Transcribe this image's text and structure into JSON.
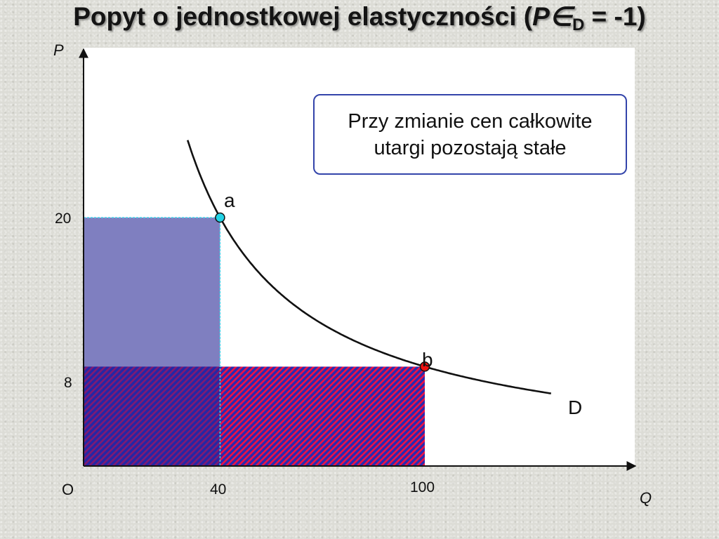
{
  "title": {
    "text": "Popyt o jednostkowej elastyczności (",
    "symbol": "P∈",
    "subscript": "D",
    "tail": " = -1)"
  },
  "axes": {
    "y_label": "P",
    "x_label": "Q",
    "origin_label": "O"
  },
  "ticks": {
    "y": [
      "20",
      "8"
    ],
    "x": [
      "40",
      "100"
    ]
  },
  "points": {
    "a": {
      "label": "a",
      "Q": 40,
      "P": 20,
      "color": "#22d3e6"
    },
    "b": {
      "label": "b",
      "Q": 100,
      "P": 8,
      "color": "#ee1111"
    }
  },
  "curve": {
    "label": "D"
  },
  "note": {
    "line1": "Przy zmianie cen całkowite",
    "line2": "utargi pozostają stałe"
  },
  "colors": {
    "revenue_a_fill": "#7f7fc0",
    "revenue_overlap_fill": "#22229a",
    "revenue_b_hatch": "#ee1144",
    "revenue_b_base": "#2a2ab0",
    "note_border": "#3344aa"
  }
}
